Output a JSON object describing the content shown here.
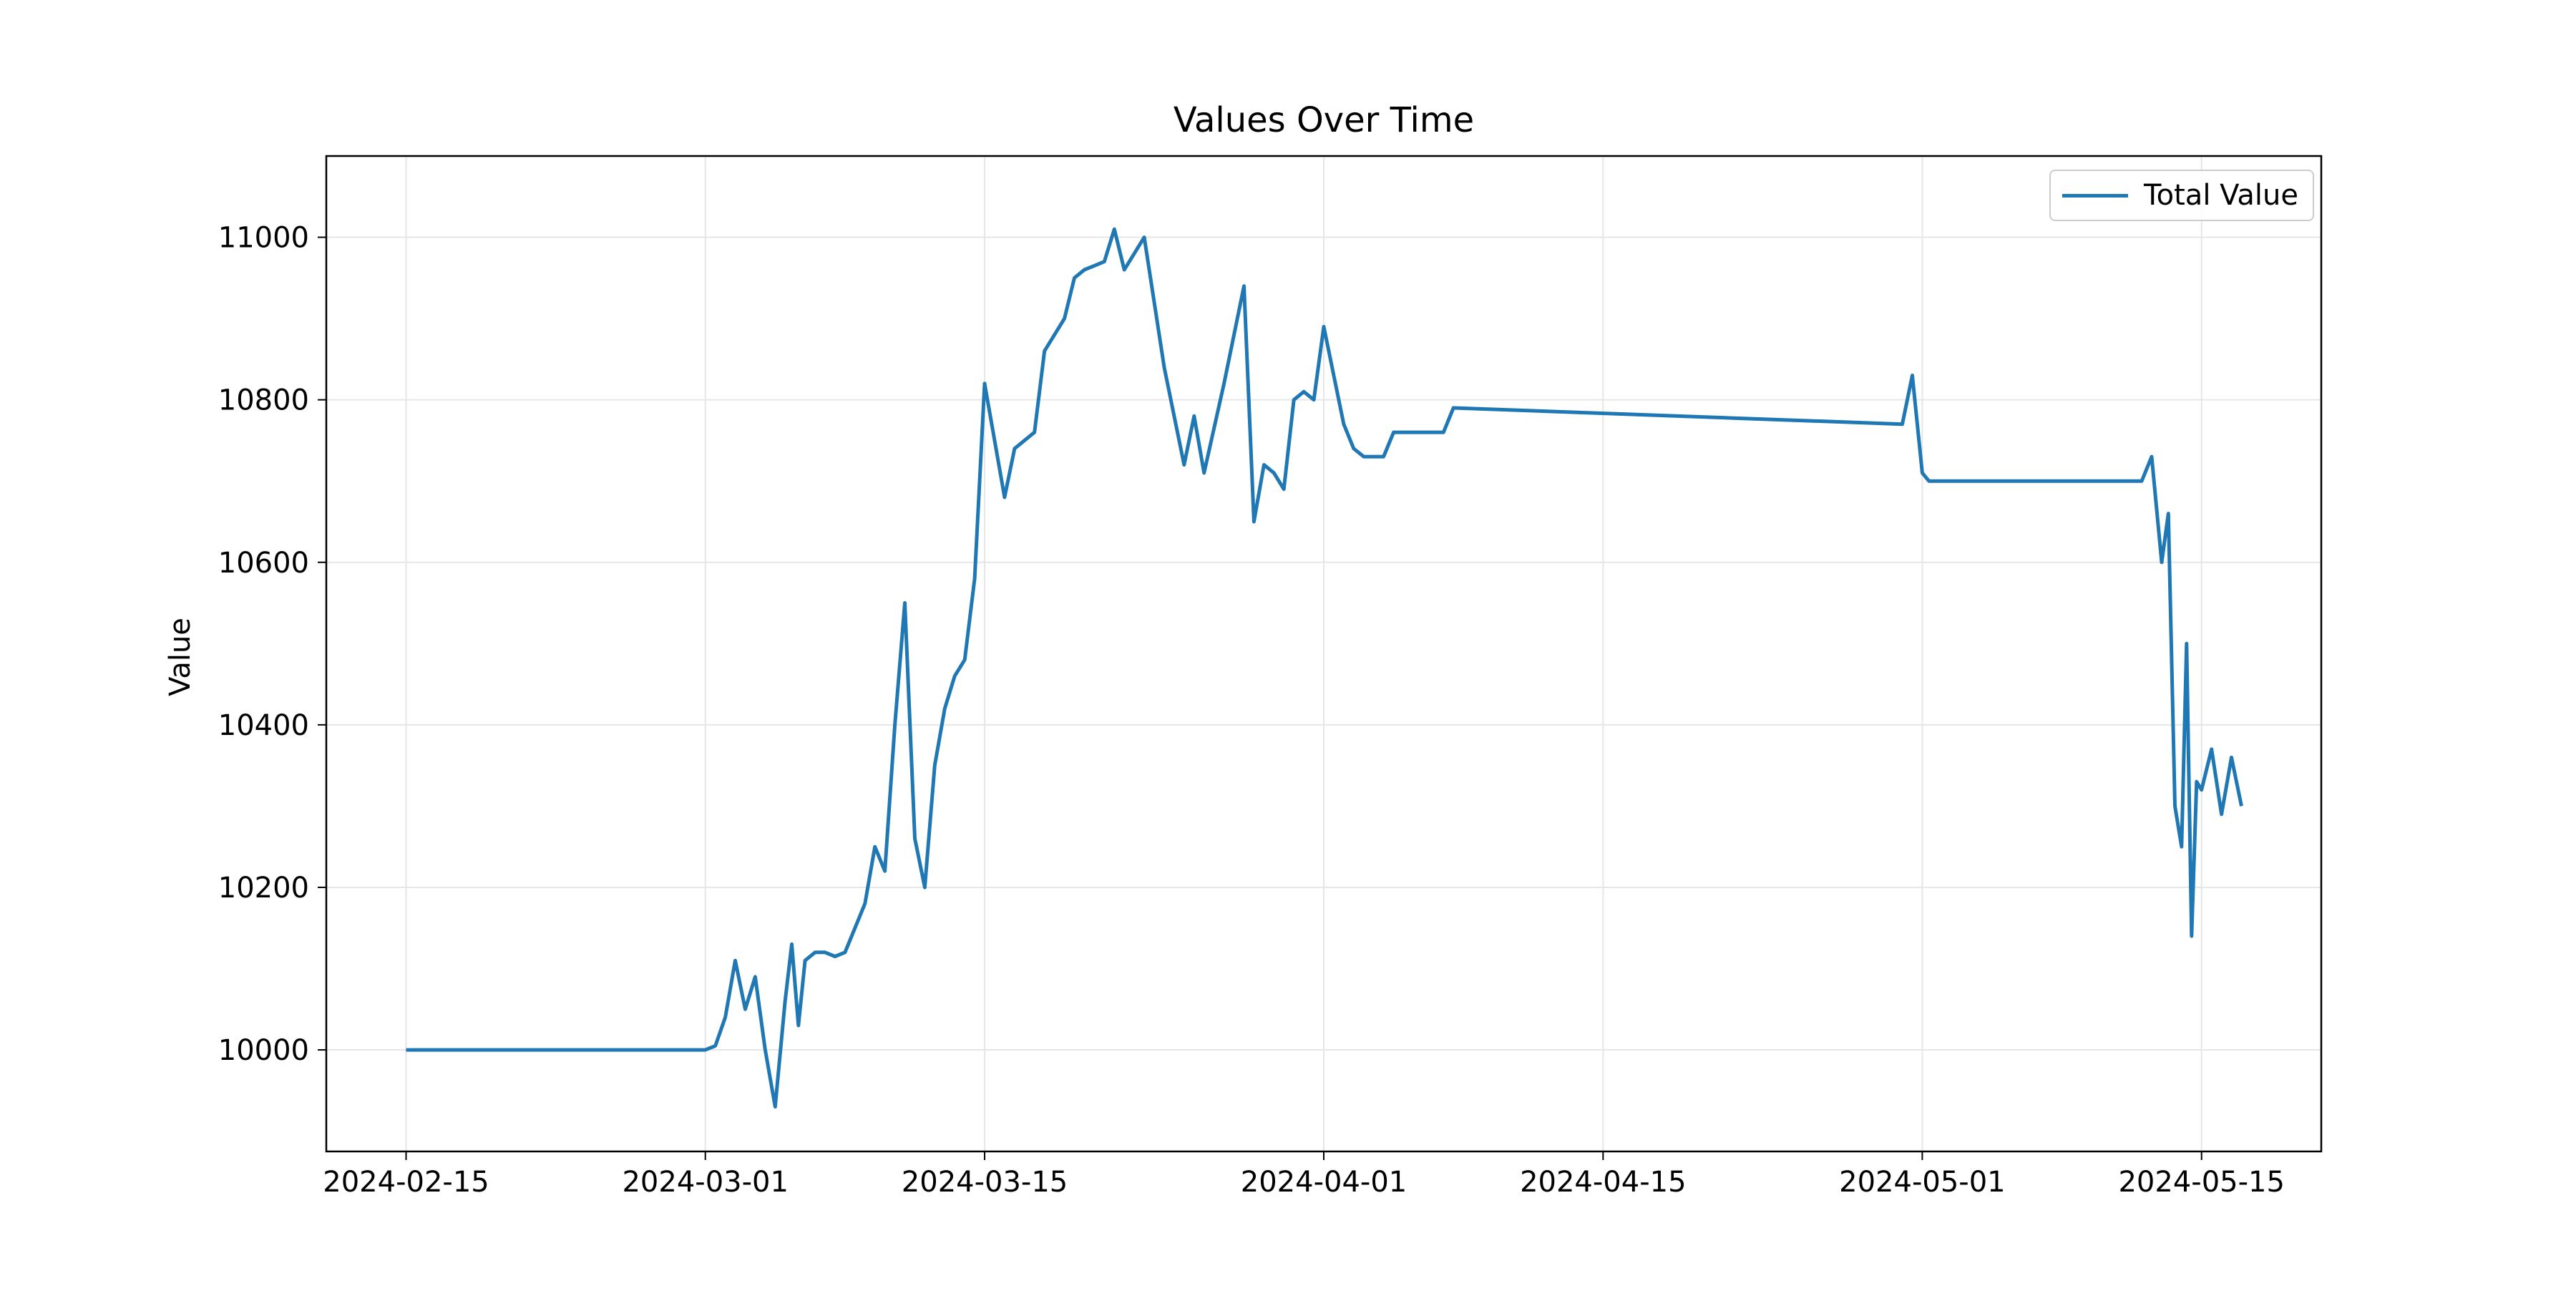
{
  "chart_data": {
    "type": "line",
    "title": "Values Over Time",
    "xlabel": "",
    "ylabel": "Value",
    "x_tick_labels": [
      "2024-02-15",
      "2024-03-01",
      "2024-03-15",
      "2024-04-01",
      "2024-04-15",
      "2024-05-01",
      "2024-05-15"
    ],
    "y_tick_labels": [
      "10000",
      "10200",
      "10400",
      "10600",
      "10800",
      "11000"
    ],
    "xlim": [
      "2024-02-11",
      "2024-05-21"
    ],
    "ylim": [
      9875,
      11100
    ],
    "grid": true,
    "legend_position": "top-right",
    "colors": {
      "line": "#1f77b4",
      "grid": "#e6e6e6",
      "axes": "#000000"
    },
    "series": [
      {
        "name": "Total Value",
        "x": [
          "2024-02-15",
          "2024-03-01",
          "2024-03-01",
          "2024-03-02",
          "2024-03-02",
          "2024-03-03",
          "2024-03-03",
          "2024-03-04",
          "2024-03-04",
          "2024-03-05",
          "2024-03-05",
          "2024-03-05",
          "2024-03-06",
          "2024-03-06",
          "2024-03-07",
          "2024-03-07",
          "2024-03-08",
          "2024-03-09",
          "2024-03-09",
          "2024-03-10",
          "2024-03-10",
          "2024-03-11",
          "2024-03-11",
          "2024-03-12",
          "2024-03-12",
          "2024-03-13",
          "2024-03-13",
          "2024-03-14",
          "2024-03-14",
          "2024-03-15",
          "2024-03-16",
          "2024-03-16",
          "2024-03-17",
          "2024-03-17",
          "2024-03-18",
          "2024-03-19",
          "2024-03-19",
          "2024-03-20",
          "2024-03-20",
          "2024-03-21",
          "2024-03-21",
          "2024-03-22",
          "2024-03-23",
          "2024-03-24",
          "2024-03-25",
          "2024-03-25",
          "2024-03-26",
          "2024-03-27",
          "2024-03-28",
          "2024-03-28",
          "2024-03-29",
          "2024-03-29",
          "2024-03-30",
          "2024-03-30",
          "2024-03-31",
          "2024-03-31",
          "2024-04-01",
          "2024-04-02",
          "2024-04-02",
          "2024-04-03",
          "2024-04-04",
          "2024-04-04",
          "2024-04-05",
          "2024-04-06",
          "2024-04-07",
          "2024-04-07",
          "2024-04-30",
          "2024-04-30",
          "2024-05-01",
          "2024-05-01",
          "2024-05-01",
          "2024-05-02",
          "2024-05-12",
          "2024-05-12",
          "2024-05-13",
          "2024-05-13",
          "2024-05-13",
          "2024-05-14",
          "2024-05-14",
          "2024-05-14",
          "2024-05-14",
          "2024-05-15",
          "2024-05-15",
          "2024-05-16",
          "2024-05-16",
          "2024-05-17"
        ],
        "y": [
          10000,
          10000,
          10005,
          10040,
          10110,
          10050,
          10090,
          10000,
          9930,
          10060,
          10130,
          10030,
          10110,
          10120,
          10120,
          10115,
          10120,
          10180,
          10250,
          10220,
          10400,
          10550,
          10260,
          10200,
          10350,
          10420,
          10460,
          10480,
          10580,
          10820,
          10680,
          10740,
          10750,
          10760,
          10860,
          10900,
          10950,
          10960,
          10965,
          10970,
          11010,
          10960,
          11000,
          10840,
          10720,
          10780,
          10710,
          10820,
          10940,
          10650,
          10720,
          10710,
          10690,
          10800,
          10810,
          10800,
          10890,
          10770,
          10740,
          10730,
          10730,
          10760,
          10760,
          10760,
          10760,
          10790,
          10770,
          10830,
          10710,
          10700,
          10700,
          10700,
          10700,
          10730,
          10600,
          10660,
          10300,
          10250,
          10500,
          10140,
          10330,
          10320,
          10370,
          10290,
          10360,
          10300
        ]
      }
    ]
  }
}
